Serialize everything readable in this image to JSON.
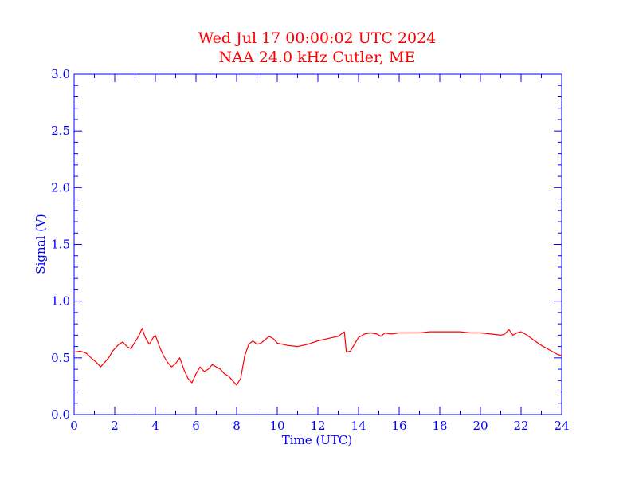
{
  "colors": {
    "title": "#ff0000",
    "axis": "#0000ff",
    "series": "#ff0000",
    "background": "#ffffff"
  },
  "chart_data": {
    "type": "line",
    "title": "Wed Jul 17 00:00:02 UTC 2024",
    "subtitle": "NAA 24.0 kHz Cutler, ME",
    "xlabel": "Time (UTC)",
    "ylabel": "Signal (V)",
    "xlim": [
      0,
      24
    ],
    "ylim": [
      0.0,
      3.0
    ],
    "x_ticks": [
      0,
      2,
      4,
      6,
      8,
      10,
      12,
      14,
      16,
      18,
      20,
      22,
      24
    ],
    "x_tick_labels": [
      "0",
      "2",
      "4",
      "6",
      "8",
      "10",
      "12",
      "14",
      "16",
      "18",
      "20",
      "22",
      "24"
    ],
    "y_ticks": [
      0.0,
      0.5,
      1.0,
      1.5,
      2.0,
      2.5,
      3.0
    ],
    "y_tick_labels": [
      "0.0",
      "0.5",
      "1.0",
      "1.5",
      "2.0",
      "2.5",
      "3.0"
    ],
    "grid": false,
    "series": [
      {
        "x": [
          0,
          0.3,
          0.6,
          0.9,
          1.1,
          1.3,
          1.5,
          1.7,
          1.9,
          2.0,
          2.2,
          2.4,
          2.6,
          2.8,
          3.0,
          3.2,
          3.35,
          3.5,
          3.7,
          3.9,
          4.0,
          4.2,
          4.4,
          4.6,
          4.8,
          5.0,
          5.2,
          5.4,
          5.6,
          5.8,
          6.0,
          6.2,
          6.4,
          6.6,
          6.8,
          7.0,
          7.2,
          7.4,
          7.6,
          7.8,
          8.0,
          8.2,
          8.4,
          8.6,
          8.8,
          9.0,
          9.2,
          9.4,
          9.6,
          9.8,
          10.0,
          10.5,
          11.0,
          11.5,
          12.0,
          12.5,
          13.0,
          13.3,
          13.4,
          13.6,
          13.8,
          14.0,
          14.3,
          14.6,
          14.9,
          15.1,
          15.3,
          15.6,
          16.0,
          16.5,
          17.0,
          17.5,
          18.0,
          18.5,
          19.0,
          19.5,
          20.0,
          20.5,
          21.0,
          21.2,
          21.4,
          21.6,
          21.8,
          22.0,
          22.3,
          22.6,
          23.0,
          23.4,
          23.8,
          24.0
        ],
        "y": [
          0.55,
          0.56,
          0.54,
          0.49,
          0.46,
          0.42,
          0.46,
          0.5,
          0.56,
          0.58,
          0.62,
          0.64,
          0.6,
          0.58,
          0.64,
          0.7,
          0.76,
          0.68,
          0.62,
          0.68,
          0.7,
          0.6,
          0.52,
          0.46,
          0.42,
          0.45,
          0.5,
          0.4,
          0.32,
          0.28,
          0.36,
          0.42,
          0.38,
          0.4,
          0.44,
          0.42,
          0.4,
          0.36,
          0.34,
          0.3,
          0.26,
          0.32,
          0.52,
          0.62,
          0.65,
          0.62,
          0.63,
          0.66,
          0.69,
          0.67,
          0.63,
          0.61,
          0.6,
          0.62,
          0.65,
          0.67,
          0.69,
          0.73,
          0.55,
          0.56,
          0.62,
          0.68,
          0.71,
          0.72,
          0.71,
          0.69,
          0.72,
          0.71,
          0.72,
          0.72,
          0.72,
          0.73,
          0.73,
          0.73,
          0.73,
          0.72,
          0.72,
          0.71,
          0.7,
          0.71,
          0.75,
          0.7,
          0.72,
          0.73,
          0.7,
          0.66,
          0.61,
          0.57,
          0.53,
          0.52
        ]
      }
    ]
  }
}
